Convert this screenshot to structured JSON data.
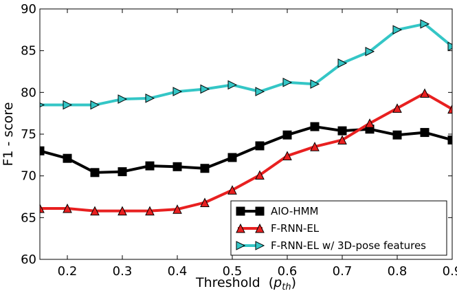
{
  "chart_data": {
    "type": "line",
    "title": "",
    "xlabel": "Threshold",
    "xlabel_sub": "th",
    "ylabel": "F1 - score",
    "xlim": [
      0.15,
      0.9
    ],
    "ylim": [
      60,
      90
    ],
    "xticks": [
      0.2,
      0.3,
      0.4,
      0.5,
      0.6,
      0.7,
      0.8,
      0.9
    ],
    "yticks": [
      60,
      65,
      70,
      75,
      80,
      85,
      90
    ],
    "x": [
      0.15,
      0.2,
      0.25,
      0.3,
      0.35,
      0.4,
      0.45,
      0.5,
      0.55,
      0.6,
      0.65,
      0.7,
      0.75,
      0.8,
      0.85,
      0.9
    ],
    "series": [
      {
        "name": "AIO-HMM",
        "color": "#000000",
        "marker": "square",
        "values": [
          73.0,
          72.1,
          70.4,
          70.5,
          71.2,
          71.1,
          70.9,
          72.2,
          73.6,
          74.9,
          75.9,
          75.4,
          75.6,
          74.9,
          75.2,
          74.3
        ]
      },
      {
        "name": "F-RNN-EL",
        "color": "#e82020",
        "marker": "triangle-up",
        "values": [
          66.1,
          66.1,
          65.8,
          65.8,
          65.8,
          66.0,
          66.8,
          68.3,
          70.1,
          72.4,
          73.5,
          74.3,
          76.3,
          78.1,
          79.9,
          78.0
        ]
      },
      {
        "name": "F-RNN-EL w/ 3D-pose features",
        "color": "#34c6c6",
        "marker": "triangle-right",
        "values": [
          78.5,
          78.5,
          78.5,
          79.2,
          79.3,
          80.1,
          80.4,
          80.9,
          80.1,
          81.2,
          81.0,
          83.5,
          84.9,
          87.5,
          88.2,
          85.5
        ]
      }
    ],
    "legend_position": "bottom-right"
  }
}
